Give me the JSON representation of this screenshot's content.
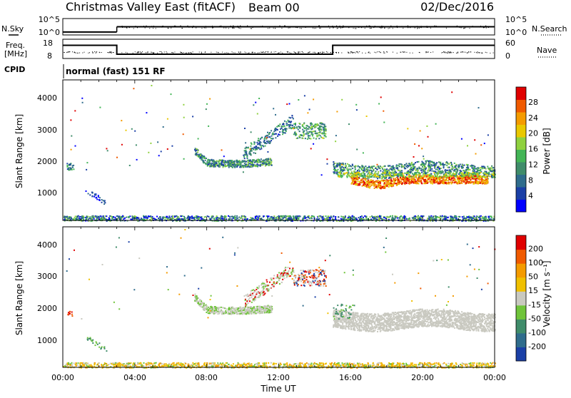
{
  "header": {
    "station": "Christmas Valley East (fitACF)",
    "beam": "Beam 00",
    "date": "02/Dec/2016"
  },
  "side_labels": {
    "nsky": "N.Sky",
    "freq_line1": "Freq.",
    "freq_line2": "[MHz]",
    "cpid": "CPID",
    "nsearch": "N.Search",
    "nave": "Nave",
    "cpid_text": "normal (fast) 151 RF"
  },
  "chart_data": [
    {
      "type": "line",
      "name": "noise",
      "left_ticks": [
        "10^5",
        "10^0"
      ],
      "right_ticks": [
        "10^5",
        "10^0"
      ],
      "segments": [
        {
          "x0": 0.0,
          "x1": 3.0,
          "level": 0.15
        },
        {
          "x0": 3.0,
          "x1": 24.0,
          "level": 0.5
        }
      ]
    },
    {
      "type": "line",
      "name": "freq-nave",
      "left_ticks": [
        "18",
        "8"
      ],
      "right_ticks": [
        "60",
        "0"
      ],
      "freq_steps": [
        {
          "x0": 0.0,
          "x1": 3.0,
          "mhz": 15
        },
        {
          "x0": 3.0,
          "x1": 15.0,
          "mhz": 10
        },
        {
          "x0": 15.0,
          "x1": 24.0,
          "mhz": 15
        }
      ]
    },
    {
      "type": "heatmap",
      "name": "power",
      "ylabel": "Slant Range [km]",
      "yticks": [
        "4000",
        "3000",
        "2000",
        "1000"
      ],
      "ylim": [
        180,
        4500
      ],
      "colorbar_label": "Power [dB]",
      "colorbar_ticks": [
        "28",
        "24",
        "20",
        "16",
        "12",
        "8",
        "4"
      ],
      "colors": [
        "#0000ff",
        "#1a3fa6",
        "#2f6c8c",
        "#3f8c6a",
        "#43b556",
        "#8fd13f",
        "#e9c800",
        "#f49b00",
        "#f05a00",
        "#e00000"
      ]
    },
    {
      "type": "heatmap",
      "name": "velocity",
      "ylabel": "Slant Range [km]",
      "yticks": [
        "4000",
        "3000",
        "2000",
        "1000"
      ],
      "ylim": [
        180,
        4500
      ],
      "colorbar_label": "Velocity [m s⁻¹]",
      "colorbar_ticks": [
        "200",
        "100",
        "50",
        "15",
        "-15",
        "-50",
        "-100",
        "-200"
      ],
      "colors": [
        "#1a3fa6",
        "#2f6c8c",
        "#3f8c6a",
        "#6fc43a",
        "#c9c9c0",
        "#f0c000",
        "#f49b00",
        "#f05a00",
        "#e00000"
      ]
    }
  ],
  "time_axis": {
    "ticks": [
      "00:00",
      "04:00",
      "08:00",
      "12:00",
      "16:00",
      "20:00",
      "00:00"
    ],
    "label": "Time UT",
    "xlim": [
      0,
      24
    ]
  }
}
